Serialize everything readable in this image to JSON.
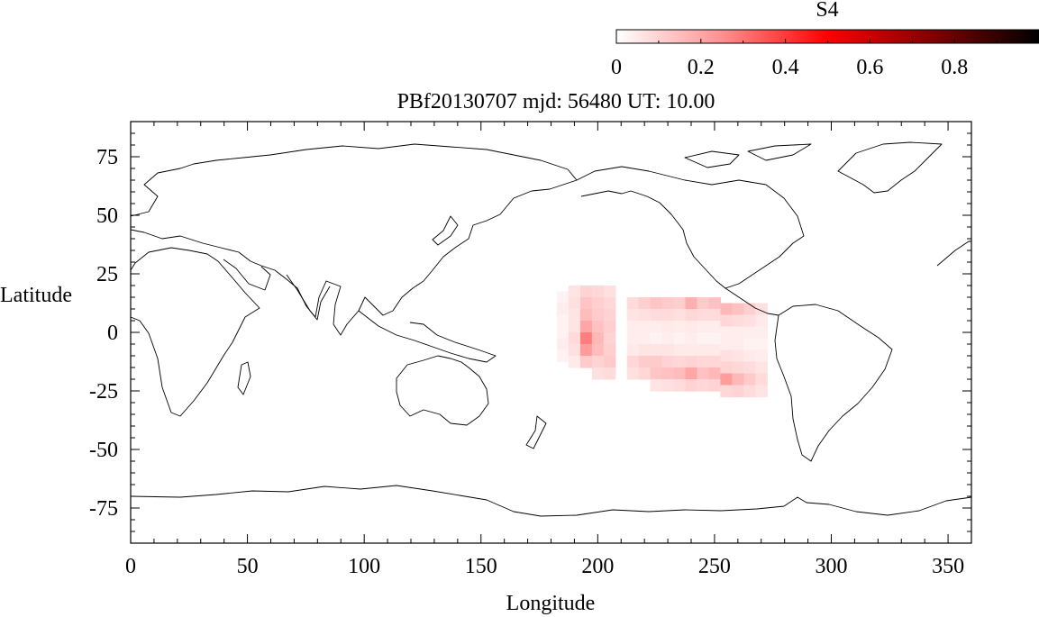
{
  "chart_data": {
    "type": "heatmap",
    "title": "PBf20130707  mjd: 56480  UT:  10.00",
    "xlabel": "Longitude",
    "ylabel": "Latitude",
    "xlim": [
      0,
      360
    ],
    "ylim": [
      -90,
      90
    ],
    "xticks": [
      0,
      50,
      100,
      150,
      200,
      250,
      300,
      350
    ],
    "yticks": [
      75,
      50,
      25,
      0,
      -25,
      -50,
      -75
    ],
    "grid": false,
    "colorbar": {
      "label": "S4",
      "range": [
        0,
        1
      ],
      "ticks": [
        0,
        0.2,
        0.4,
        0.6,
        0.8
      ],
      "tick_labels": [
        "0",
        "0.2",
        "0.4",
        "0.6",
        "0.8"
      ],
      "colors": [
        "#ffffff",
        "#ff9090",
        "#ff0000",
        "#800000",
        "#000000"
      ],
      "position": "top-right"
    },
    "cell_size_deg": [
      5,
      2.5
    ],
    "cells": [
      [
        185,
        15,
        0.03
      ],
      [
        185,
        10,
        0.04
      ],
      [
        185,
        5,
        0.03
      ],
      [
        185,
        0,
        0.03
      ],
      [
        185,
        -5,
        0.04
      ],
      [
        185,
        -10,
        0.03
      ],
      [
        190,
        17.5,
        0.06
      ],
      [
        190,
        12.5,
        0.07
      ],
      [
        190,
        7.5,
        0.06
      ],
      [
        190,
        2.5,
        0.06
      ],
      [
        190,
        -2.5,
        0.08
      ],
      [
        190,
        -7.5,
        0.07
      ],
      [
        190,
        -12.5,
        0.05
      ],
      [
        195,
        17.5,
        0.1
      ],
      [
        195,
        12.5,
        0.13
      ],
      [
        195,
        7.5,
        0.15
      ],
      [
        195,
        2.5,
        0.2
      ],
      [
        195,
        -2.5,
        0.28
      ],
      [
        195,
        -7.5,
        0.22
      ],
      [
        195,
        -12.5,
        0.12
      ],
      [
        200,
        17.5,
        0.09
      ],
      [
        200,
        12.5,
        0.11
      ],
      [
        200,
        7.5,
        0.12
      ],
      [
        200,
        2.5,
        0.14
      ],
      [
        200,
        -2.5,
        0.16
      ],
      [
        200,
        -7.5,
        0.15
      ],
      [
        200,
        -12.5,
        0.1
      ],
      [
        200,
        -17.5,
        0.07
      ],
      [
        205,
        17.5,
        0.07
      ],
      [
        205,
        12.5,
        0.09
      ],
      [
        205,
        7.5,
        0.1
      ],
      [
        205,
        2.5,
        0.11
      ],
      [
        205,
        -2.5,
        0.1
      ],
      [
        205,
        -7.5,
        0.11
      ],
      [
        205,
        -12.5,
        0.12
      ],
      [
        205,
        -17.5,
        0.08
      ],
      [
        215,
        12.5,
        0.08
      ],
      [
        215,
        7.5,
        0.06
      ],
      [
        215,
        2.5,
        0.04
      ],
      [
        215,
        -2.5,
        0.04
      ],
      [
        215,
        -7.5,
        0.05
      ],
      [
        215,
        -12.5,
        0.09
      ],
      [
        215,
        -17.5,
        0.07
      ],
      [
        220,
        12.5,
        0.11
      ],
      [
        220,
        7.5,
        0.07
      ],
      [
        220,
        2.5,
        0.04
      ],
      [
        220,
        -2.5,
        0.04
      ],
      [
        220,
        -7.5,
        0.06
      ],
      [
        220,
        -12.5,
        0.12
      ],
      [
        220,
        -17.5,
        0.09
      ],
      [
        225,
        12.5,
        0.13
      ],
      [
        225,
        7.5,
        0.08
      ],
      [
        225,
        2.5,
        0.04
      ],
      [
        225,
        -2.5,
        0.03
      ],
      [
        225,
        -7.5,
        0.06
      ],
      [
        225,
        -12.5,
        0.12
      ],
      [
        225,
        -17.5,
        0.13
      ],
      [
        225,
        -22.5,
        0.06
      ],
      [
        230,
        12.5,
        0.12
      ],
      [
        230,
        7.5,
        0.08
      ],
      [
        230,
        2.5,
        0.05
      ],
      [
        230,
        -2.5,
        0.04
      ],
      [
        230,
        -7.5,
        0.06
      ],
      [
        230,
        -12.5,
        0.1
      ],
      [
        230,
        -17.5,
        0.14
      ],
      [
        230,
        -22.5,
        0.07
      ],
      [
        235,
        12.5,
        0.11
      ],
      [
        235,
        7.5,
        0.07
      ],
      [
        235,
        2.5,
        0.04
      ],
      [
        235,
        -2.5,
        0.03
      ],
      [
        235,
        -7.5,
        0.05
      ],
      [
        235,
        -12.5,
        0.09
      ],
      [
        235,
        -17.5,
        0.15
      ],
      [
        235,
        -22.5,
        0.08
      ],
      [
        240,
        12.5,
        0.18
      ],
      [
        240,
        7.5,
        0.09
      ],
      [
        240,
        2.5,
        0.05
      ],
      [
        240,
        -2.5,
        0.04
      ],
      [
        240,
        -7.5,
        0.05
      ],
      [
        240,
        -12.5,
        0.1
      ],
      [
        240,
        -17.5,
        0.2
      ],
      [
        240,
        -22.5,
        0.1
      ],
      [
        245,
        12.5,
        0.12
      ],
      [
        245,
        7.5,
        0.08
      ],
      [
        245,
        2.5,
        0.04
      ],
      [
        245,
        -2.5,
        0.03
      ],
      [
        245,
        -7.5,
        0.05
      ],
      [
        245,
        -12.5,
        0.09
      ],
      [
        245,
        -17.5,
        0.14
      ],
      [
        245,
        -22.5,
        0.09
      ],
      [
        250,
        12.5,
        0.14
      ],
      [
        250,
        7.5,
        0.08
      ],
      [
        250,
        2.5,
        0.04
      ],
      [
        250,
        -2.5,
        0.03
      ],
      [
        250,
        -7.5,
        0.05
      ],
      [
        250,
        -12.5,
        0.09
      ],
      [
        250,
        -17.5,
        0.16
      ],
      [
        250,
        -22.5,
        0.1
      ],
      [
        255,
        10,
        0.16
      ],
      [
        255,
        5,
        0.09
      ],
      [
        255,
        0,
        0.04
      ],
      [
        255,
        -5,
        0.04
      ],
      [
        255,
        -10,
        0.07
      ],
      [
        255,
        -15,
        0.1
      ],
      [
        255,
        -20,
        0.22
      ],
      [
        255,
        -25,
        0.09
      ],
      [
        260,
        10,
        0.14
      ],
      [
        260,
        5,
        0.08
      ],
      [
        260,
        0,
        0.04
      ],
      [
        260,
        -5,
        0.04
      ],
      [
        260,
        -10,
        0.06
      ],
      [
        260,
        -15,
        0.09
      ],
      [
        260,
        -20,
        0.16
      ],
      [
        260,
        -25,
        0.1
      ],
      [
        265,
        10,
        0.11
      ],
      [
        265,
        5,
        0.07
      ],
      [
        265,
        0,
        0.04
      ],
      [
        265,
        -5,
        0.03
      ],
      [
        265,
        -10,
        0.05
      ],
      [
        265,
        -15,
        0.08
      ],
      [
        265,
        -20,
        0.12
      ],
      [
        265,
        -25,
        0.08
      ],
      [
        270,
        10,
        0.07
      ],
      [
        270,
        5,
        0.05
      ],
      [
        270,
        0,
        0.04
      ],
      [
        270,
        -5,
        0.03
      ],
      [
        270,
        -10,
        0.04
      ],
      [
        270,
        -15,
        0.06
      ],
      [
        270,
        -20,
        0.08
      ],
      [
        270,
        -25,
        0.06
      ]
    ]
  }
}
